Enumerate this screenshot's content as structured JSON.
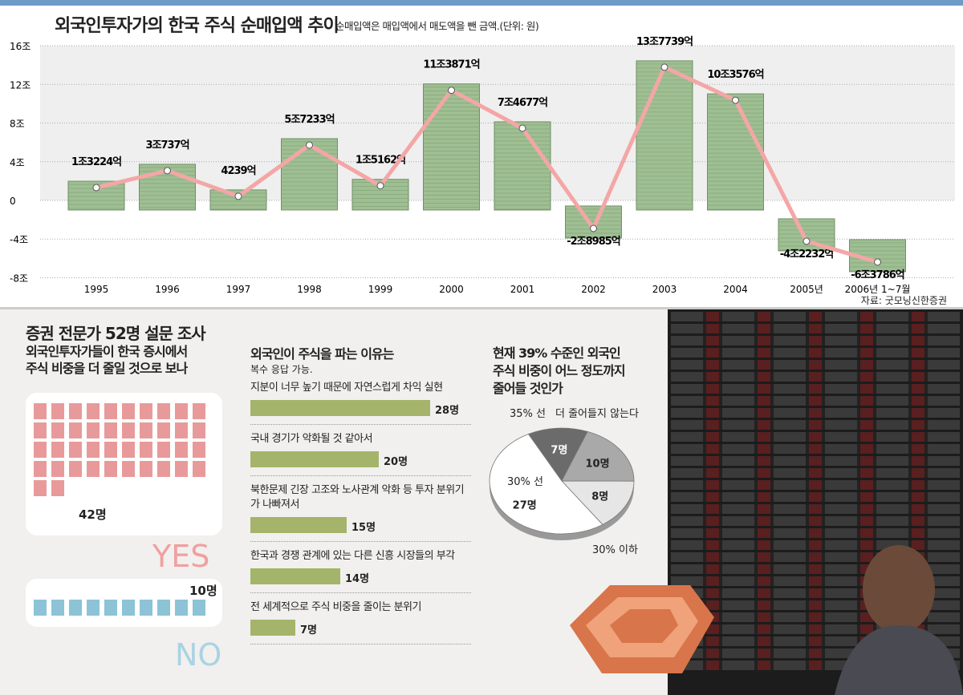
{
  "header": {
    "title": "외국인투자가의 한국 주식 순매입액 추이",
    "subtitle": "순매입액은 매입액에서 매도액을 뺀 금액.(단위: 원)",
    "source": "자료: 굿모닝신한증권"
  },
  "chart_data": {
    "type": "line",
    "title": "외국인투자가의 한국 주식 순매입액 추이",
    "ylabel": "조 원",
    "ylim": [
      -8,
      16
    ],
    "yticks": [
      16,
      12,
      8,
      4,
      0,
      -4,
      -8
    ],
    "ytick_labels": [
      "16조",
      "12조",
      "8조",
      "4조",
      "0",
      "-4조",
      "-8조"
    ],
    "categories": [
      "1995",
      "1996",
      "1997",
      "1998",
      "1999",
      "2000",
      "2001",
      "2002",
      "2003",
      "2004",
      "2005년",
      "2006년 1~7월"
    ],
    "values": [
      1.3224,
      3.0737,
      0.4239,
      5.7233,
      1.5162,
      11.3871,
      7.4677,
      -2.8985,
      13.7739,
      10.3576,
      -4.2232,
      -6.3786
    ],
    "data_labels": [
      "1조3224억",
      "3조737억",
      "4239억",
      "5조7233억",
      "1조5162억",
      "11조3871억",
      "7조4677억",
      "-2조8985억",
      "13조7739억",
      "10조3576억",
      "-4조2232억",
      "-6조3786억"
    ],
    "line_color": "#f4a6a6",
    "stack_color": "#9fbf93"
  },
  "survey": {
    "title": "증권 전문가 52명 설문 조사",
    "q1": {
      "line1": "외국인투자가들이 한국 증시에서",
      "line2": "주식 비중을 더 줄일 것으로 보나",
      "yes_label": "YES",
      "yes_count": "42명",
      "yes_n": 42,
      "no_label": "NO",
      "no_count": "10명",
      "no_n": 10
    },
    "q2": {
      "title": "외국인이 주식을 파는 이유는",
      "note": "복수 응답 가능.",
      "items": [
        {
          "label": "지분이 너무 높기 때문에 자연스럽게 차익 실현",
          "value": 28,
          "text": "28명"
        },
        {
          "label": "국내 경기가 악화될 것 같아서",
          "value": 20,
          "text": "20명"
        },
        {
          "label": "북한문제 긴장 고조와 노사관계 악화 등 투자 분위기가 나빠져서",
          "value": 15,
          "text": "15명"
        },
        {
          "label": "한국과 경쟁 관계에 있는 다른 신흥 시장들의 부각",
          "value": 14,
          "text": "14명"
        },
        {
          "label": "전 세계적으로 주식 비중을 줄이는 분위기",
          "value": 7,
          "text": "7명"
        }
      ]
    },
    "q3": {
      "line1": "현재 39% 수준인 외국인",
      "line2": "주식 비중이 어느 정도까지",
      "line3": "줄어들 것인가",
      "slices": [
        {
          "label": "35% 선",
          "value": 7,
          "text": "7명",
          "color": "#6b6b6b"
        },
        {
          "label": "더 줄어들지 않는다",
          "value": 10,
          "text": "10명",
          "color": "#a9a9a9"
        },
        {
          "label": "30% 이하",
          "value": 8,
          "text": "8명",
          "color": "#e6e6e6"
        },
        {
          "label": "30% 선",
          "value": 27,
          "text": "27명",
          "color": "#ffffff"
        }
      ]
    }
  }
}
